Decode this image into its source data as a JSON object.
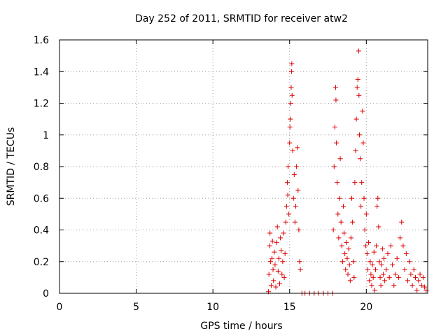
{
  "chart_data": {
    "type": "scatter",
    "title": "Day 252 of 2011, SRMTID for receiver atw2",
    "xlabel": "GPS time / hours",
    "ylabel": "SRMTID / TECUs",
    "xlim": [
      0,
      24
    ],
    "ylim": [
      0,
      1.6
    ],
    "grid": true,
    "legend": "none",
    "marker": "+",
    "series_color": "#dd0000",
    "x_ticks": [
      {
        "value": 0,
        "label": "0"
      },
      {
        "value": 5,
        "label": "5"
      },
      {
        "value": 10,
        "label": "10"
      },
      {
        "value": 15,
        "label": "15"
      },
      {
        "value": 20,
        "label": "20"
      }
    ],
    "y_ticks": [
      {
        "value": 0,
        "label": "0"
      },
      {
        "value": 0.2,
        "label": "0.2"
      },
      {
        "value": 0.4,
        "label": "0.4"
      },
      {
        "value": 0.6,
        "label": "0.6"
      },
      {
        "value": 0.8,
        "label": "0.8"
      },
      {
        "value": 1,
        "label": "1"
      },
      {
        "value": 1.2,
        "label": "1.2"
      },
      {
        "value": 1.4,
        "label": "1.4"
      },
      {
        "value": 1.6,
        "label": "1.6"
      }
    ],
    "series": [
      {
        "name": "atw2",
        "points": [
          {
            "x": 13.62,
            "y": 0.01
          },
          {
            "x": 13.65,
            "y": 0.12
          },
          {
            "x": 13.7,
            "y": 0.3
          },
          {
            "x": 13.72,
            "y": 0.38
          },
          {
            "x": 13.75,
            "y": 0.2
          },
          {
            "x": 13.8,
            "y": 0.05
          },
          {
            "x": 13.85,
            "y": 0.22
          },
          {
            "x": 13.88,
            "y": 0.33
          },
          {
            "x": 13.92,
            "y": 0.15
          },
          {
            "x": 13.95,
            "y": 0.08
          },
          {
            "x": 14.0,
            "y": 0.26
          },
          {
            "x": 14.05,
            "y": 0.18
          },
          {
            "x": 14.1,
            "y": 0.04
          },
          {
            "x": 14.15,
            "y": 0.32
          },
          {
            "x": 14.2,
            "y": 0.42
          },
          {
            "x": 14.25,
            "y": 0.14
          },
          {
            "x": 14.3,
            "y": 0.22
          },
          {
            "x": 14.35,
            "y": 0.06
          },
          {
            "x": 14.4,
            "y": 0.35
          },
          {
            "x": 14.45,
            "y": 0.27
          },
          {
            "x": 14.5,
            "y": 0.12
          },
          {
            "x": 14.55,
            "y": 0.2
          },
          {
            "x": 14.6,
            "y": 0.38
          },
          {
            "x": 14.65,
            "y": 0.1
          },
          {
            "x": 14.7,
            "y": 0.25
          },
          {
            "x": 14.75,
            "y": 0.45
          },
          {
            "x": 14.8,
            "y": 0.55
          },
          {
            "x": 14.85,
            "y": 0.7
          },
          {
            "x": 14.88,
            "y": 0.62
          },
          {
            "x": 14.9,
            "y": 0.8
          },
          {
            "x": 14.95,
            "y": 0.5
          },
          {
            "x": 15.0,
            "y": 0.95
          },
          {
            "x": 15.02,
            "y": 1.05
          },
          {
            "x": 15.05,
            "y": 1.1
          },
          {
            "x": 15.08,
            "y": 1.2
          },
          {
            "x": 15.1,
            "y": 1.3
          },
          {
            "x": 15.12,
            "y": 1.4
          },
          {
            "x": 15.14,
            "y": 1.45
          },
          {
            "x": 15.16,
            "y": 1.25
          },
          {
            "x": 15.2,
            "y": 0.9
          },
          {
            "x": 15.25,
            "y": 0.6
          },
          {
            "x": 15.3,
            "y": 0.75
          },
          {
            "x": 15.35,
            "y": 0.45
          },
          {
            "x": 15.4,
            "y": 0.55
          },
          {
            "x": 15.45,
            "y": 0.8
          },
          {
            "x": 15.5,
            "y": 0.92
          },
          {
            "x": 15.55,
            "y": 0.65
          },
          {
            "x": 15.6,
            "y": 0.4
          },
          {
            "x": 15.65,
            "y": 0.2
          },
          {
            "x": 15.7,
            "y": 0.15
          },
          {
            "x": 15.8,
            "y": 0.0
          },
          {
            "x": 16.0,
            "y": 0.0
          },
          {
            "x": 16.3,
            "y": 0.0
          },
          {
            "x": 16.6,
            "y": 0.0
          },
          {
            "x": 16.9,
            "y": 0.0
          },
          {
            "x": 17.2,
            "y": 0.0
          },
          {
            "x": 17.5,
            "y": 0.0
          },
          {
            "x": 17.8,
            "y": 0.0
          },
          {
            "x": 17.85,
            "y": 0.4
          },
          {
            "x": 17.9,
            "y": 0.8
          },
          {
            "x": 17.95,
            "y": 1.05
          },
          {
            "x": 18.0,
            "y": 1.3
          },
          {
            "x": 18.02,
            "y": 1.22
          },
          {
            "x": 18.05,
            "y": 0.95
          },
          {
            "x": 18.1,
            "y": 0.7
          },
          {
            "x": 18.15,
            "y": 0.5
          },
          {
            "x": 18.2,
            "y": 0.35
          },
          {
            "x": 18.25,
            "y": 0.6
          },
          {
            "x": 18.3,
            "y": 0.85
          },
          {
            "x": 18.35,
            "y": 0.45
          },
          {
            "x": 18.4,
            "y": 0.3
          },
          {
            "x": 18.45,
            "y": 0.2
          },
          {
            "x": 18.5,
            "y": 0.55
          },
          {
            "x": 18.55,
            "y": 0.38
          },
          {
            "x": 18.6,
            "y": 0.25
          },
          {
            "x": 18.65,
            "y": 0.15
          },
          {
            "x": 18.7,
            "y": 0.32
          },
          {
            "x": 18.75,
            "y": 0.22
          },
          {
            "x": 18.8,
            "y": 0.12
          },
          {
            "x": 18.85,
            "y": 0.28
          },
          {
            "x": 18.9,
            "y": 0.18
          },
          {
            "x": 18.95,
            "y": 0.08
          },
          {
            "x": 19.0,
            "y": 0.35
          },
          {
            "x": 19.05,
            "y": 0.6
          },
          {
            "x": 19.1,
            "y": 0.45
          },
          {
            "x": 19.15,
            "y": 0.2
          },
          {
            "x": 19.2,
            "y": 0.1
          },
          {
            "x": 19.25,
            "y": 0.7
          },
          {
            "x": 19.3,
            "y": 0.9
          },
          {
            "x": 19.35,
            "y": 1.1
          },
          {
            "x": 19.4,
            "y": 1.3
          },
          {
            "x": 19.45,
            "y": 1.35
          },
          {
            "x": 19.5,
            "y": 1.53
          },
          {
            "x": 19.52,
            "y": 1.25
          },
          {
            "x": 19.55,
            "y": 1.0
          },
          {
            "x": 19.6,
            "y": 0.85
          },
          {
            "x": 19.65,
            "y": 0.55
          },
          {
            "x": 19.7,
            "y": 0.7
          },
          {
            "x": 19.75,
            "y": 1.15
          },
          {
            "x": 19.8,
            "y": 0.95
          },
          {
            "x": 19.85,
            "y": 0.6
          },
          {
            "x": 19.9,
            "y": 0.4
          },
          {
            "x": 19.95,
            "y": 0.3
          },
          {
            "x": 20.0,
            "y": 0.5
          },
          {
            "x": 20.05,
            "y": 0.25
          },
          {
            "x": 20.1,
            "y": 0.15
          },
          {
            "x": 20.15,
            "y": 0.32
          },
          {
            "x": 20.2,
            "y": 0.08
          },
          {
            "x": 20.25,
            "y": 0.2
          },
          {
            "x": 20.3,
            "y": 0.12
          },
          {
            "x": 20.35,
            "y": 0.05
          },
          {
            "x": 20.4,
            "y": 0.18
          },
          {
            "x": 20.45,
            "y": 0.1
          },
          {
            "x": 20.5,
            "y": 0.26
          },
          {
            "x": 20.55,
            "y": 0.02
          },
          {
            "x": 20.6,
            "y": 0.15
          },
          {
            "x": 20.65,
            "y": 0.3
          },
          {
            "x": 20.7,
            "y": 0.55
          },
          {
            "x": 20.75,
            "y": 0.6
          },
          {
            "x": 20.8,
            "y": 0.42
          },
          {
            "x": 20.85,
            "y": 0.2
          },
          {
            "x": 20.9,
            "y": 0.1
          },
          {
            "x": 20.95,
            "y": 0.05
          },
          {
            "x": 21.0,
            "y": 0.18
          },
          {
            "x": 21.05,
            "y": 0.28
          },
          {
            "x": 21.1,
            "y": 0.12
          },
          {
            "x": 21.15,
            "y": 0.22
          },
          {
            "x": 21.2,
            "y": 0.08
          },
          {
            "x": 21.3,
            "y": 0.15
          },
          {
            "x": 21.4,
            "y": 0.25
          },
          {
            "x": 21.5,
            "y": 0.1
          },
          {
            "x": 21.6,
            "y": 0.3
          },
          {
            "x": 21.7,
            "y": 0.18
          },
          {
            "x": 21.8,
            "y": 0.05
          },
          {
            "x": 21.9,
            "y": 0.12
          },
          {
            "x": 22.0,
            "y": 0.22
          },
          {
            "x": 22.1,
            "y": 0.1
          },
          {
            "x": 22.2,
            "y": 0.35
          },
          {
            "x": 22.3,
            "y": 0.45
          },
          {
            "x": 22.4,
            "y": 0.3
          },
          {
            "x": 22.5,
            "y": 0.15
          },
          {
            "x": 22.6,
            "y": 0.25
          },
          {
            "x": 22.7,
            "y": 0.08
          },
          {
            "x": 22.8,
            "y": 0.2
          },
          {
            "x": 22.9,
            "y": 0.12
          },
          {
            "x": 23.0,
            "y": 0.05
          },
          {
            "x": 23.1,
            "y": 0.15
          },
          {
            "x": 23.2,
            "y": 0.1
          },
          {
            "x": 23.3,
            "y": 0.02
          },
          {
            "x": 23.4,
            "y": 0.08
          },
          {
            "x": 23.5,
            "y": 0.12
          },
          {
            "x": 23.6,
            "y": 0.05
          },
          {
            "x": 23.7,
            "y": 0.1
          },
          {
            "x": 23.8,
            "y": 0.04
          },
          {
            "x": 23.9,
            "y": 0.02
          }
        ]
      }
    ]
  }
}
